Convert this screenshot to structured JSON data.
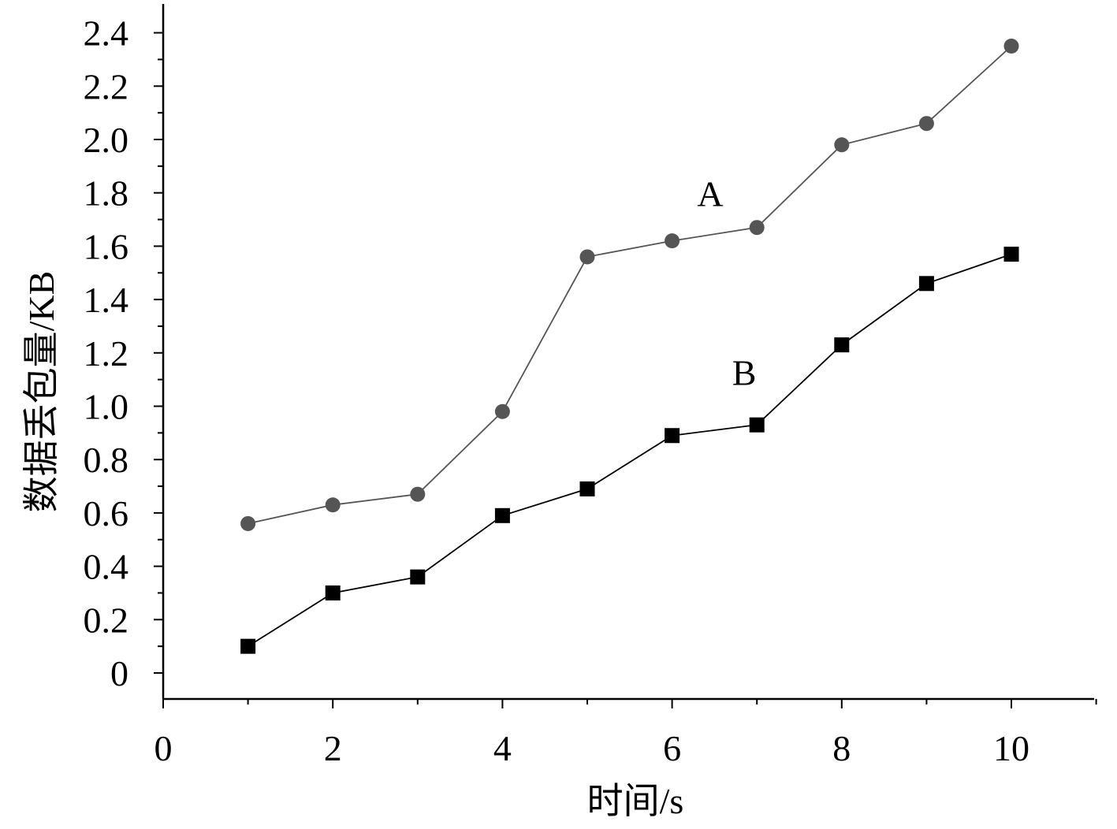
{
  "chart_data": {
    "type": "line",
    "title": "",
    "xlabel": "时间/s",
    "ylabel": "数据丢包量/KB",
    "xlim": [
      0,
      11
    ],
    "ylim": [
      -0.1,
      2.5
    ],
    "x_ticks": [
      0,
      2,
      4,
      6,
      8,
      10
    ],
    "x_tick_labels": [
      "0",
      "2",
      "4",
      "6",
      "8",
      "10"
    ],
    "y_ticks": [
      0,
      0.2,
      0.4,
      0.6,
      0.8,
      1.0,
      1.2,
      1.4,
      1.6,
      1.8,
      2.0,
      2.2,
      2.4
    ],
    "y_tick_labels": [
      "0",
      "0.2",
      "0.4",
      "0.6",
      "0.8",
      "1.0",
      "1.2",
      "1.4",
      "1.6",
      "1.8",
      "2.0",
      "2.2",
      "2.4"
    ],
    "grid": false,
    "legend": "none",
    "x": [
      1,
      2,
      3,
      4,
      5,
      6,
      7,
      8,
      9,
      10
    ],
    "series": [
      {
        "name": "A",
        "marker": "circle",
        "color": "#555555",
        "label_at": [
          6.45,
          1.75
        ],
        "values": [
          0.56,
          0.63,
          0.67,
          0.98,
          1.56,
          1.62,
          1.67,
          1.98,
          2.06,
          2.35
        ]
      },
      {
        "name": "B",
        "marker": "square",
        "color": "#000000",
        "label_at": [
          6.85,
          1.08
        ],
        "values": [
          0.1,
          0.3,
          0.36,
          0.59,
          0.69,
          0.89,
          0.93,
          1.23,
          1.46,
          1.57
        ]
      }
    ]
  }
}
